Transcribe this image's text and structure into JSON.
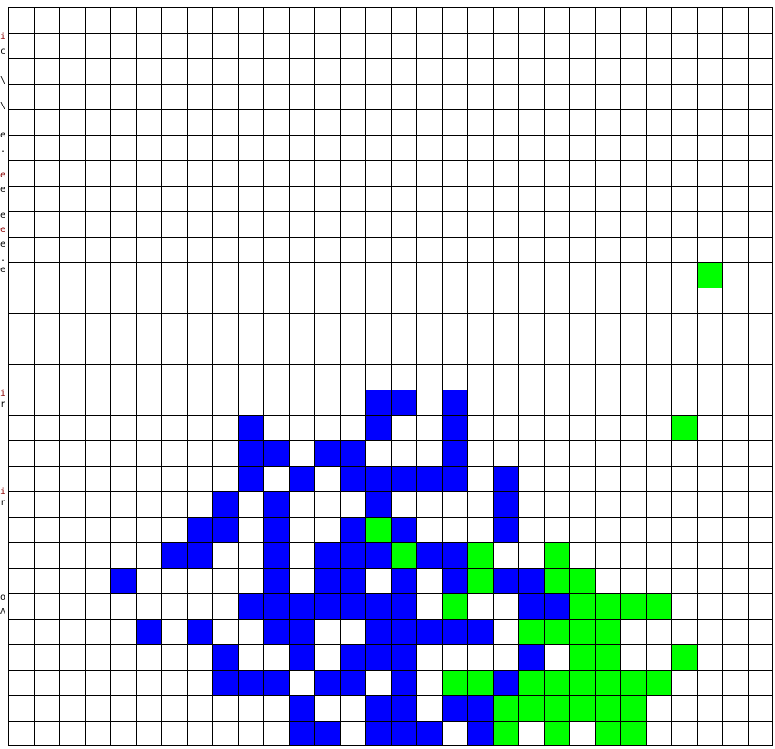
{
  "board": {
    "cols": 30,
    "rows": 29,
    "colors": {
      "empty": "#ffffff",
      "blue": "#0000ff",
      "green": "#00ff00",
      "grid_line": "#000000"
    },
    "blue_cells": [
      [
        16,
        14
      ],
      [
        16,
        15
      ],
      [
        16,
        17
      ],
      [
        17,
        9
      ],
      [
        17,
        14
      ],
      [
        17,
        17
      ],
      [
        18,
        9
      ],
      [
        18,
        10
      ],
      [
        18,
        12
      ],
      [
        18,
        13
      ],
      [
        18,
        17
      ],
      [
        19,
        9
      ],
      [
        19,
        11
      ],
      [
        19,
        13
      ],
      [
        19,
        14
      ],
      [
        19,
        15
      ],
      [
        19,
        16
      ],
      [
        19,
        17
      ],
      [
        19,
        19
      ],
      [
        20,
        8
      ],
      [
        20,
        10
      ],
      [
        20,
        14
      ],
      [
        20,
        19
      ],
      [
        21,
        7
      ],
      [
        21,
        8
      ],
      [
        21,
        10
      ],
      [
        21,
        13
      ],
      [
        21,
        15
      ],
      [
        21,
        19
      ],
      [
        22,
        6
      ],
      [
        22,
        7
      ],
      [
        22,
        10
      ],
      [
        22,
        12
      ],
      [
        22,
        13
      ],
      [
        22,
        14
      ],
      [
        22,
        16
      ],
      [
        22,
        17
      ],
      [
        23,
        4
      ],
      [
        23,
        10
      ],
      [
        23,
        12
      ],
      [
        23,
        13
      ],
      [
        23,
        15
      ],
      [
        23,
        17
      ],
      [
        23,
        19
      ],
      [
        23,
        20
      ],
      [
        24,
        9
      ],
      [
        24,
        10
      ],
      [
        24,
        11
      ],
      [
        24,
        12
      ],
      [
        24,
        13
      ],
      [
        24,
        14
      ],
      [
        24,
        15
      ],
      [
        24,
        20
      ],
      [
        24,
        21
      ],
      [
        25,
        5
      ],
      [
        25,
        7
      ],
      [
        25,
        10
      ],
      [
        25,
        11
      ],
      [
        25,
        14
      ],
      [
        25,
        15
      ],
      [
        25,
        16
      ],
      [
        25,
        17
      ],
      [
        25,
        18
      ],
      [
        26,
        8
      ],
      [
        26,
        11
      ],
      [
        26,
        13
      ],
      [
        26,
        14
      ],
      [
        26,
        15
      ],
      [
        26,
        20
      ],
      [
        27,
        8
      ],
      [
        27,
        9
      ],
      [
        27,
        10
      ],
      [
        27,
        12
      ],
      [
        27,
        13
      ],
      [
        27,
        15
      ],
      [
        27,
        19
      ],
      [
        28,
        11
      ],
      [
        28,
        14
      ],
      [
        28,
        15
      ],
      [
        28,
        17
      ],
      [
        28,
        18
      ],
      [
        29,
        11
      ],
      [
        29,
        12
      ],
      [
        29,
        14
      ],
      [
        29,
        15
      ],
      [
        29,
        16
      ],
      [
        29,
        18
      ]
    ],
    "green_cells": [
      [
        11,
        27
      ],
      [
        17,
        26
      ],
      [
        21,
        14
      ],
      [
        22,
        15
      ],
      [
        22,
        18
      ],
      [
        22,
        21
      ],
      [
        23,
        18
      ],
      [
        23,
        21
      ],
      [
        23,
        22
      ],
      [
        24,
        17
      ],
      [
        24,
        22
      ],
      [
        24,
        23
      ],
      [
        24,
        24
      ],
      [
        24,
        25
      ],
      [
        25,
        20
      ],
      [
        25,
        21
      ],
      [
        25,
        22
      ],
      [
        25,
        23
      ],
      [
        26,
        22
      ],
      [
        26,
        23
      ],
      [
        26,
        26
      ],
      [
        27,
        17
      ],
      [
        27,
        18
      ],
      [
        27,
        20
      ],
      [
        27,
        21
      ],
      [
        27,
        22
      ],
      [
        27,
        23
      ],
      [
        27,
        24
      ],
      [
        27,
        25
      ],
      [
        28,
        19
      ],
      [
        28,
        20
      ],
      [
        28,
        21
      ],
      [
        28,
        22
      ],
      [
        28,
        23
      ],
      [
        28,
        24
      ],
      [
        29,
        19
      ],
      [
        29,
        21
      ],
      [
        29,
        23
      ],
      [
        29,
        24
      ]
    ]
  },
  "left_panel": {
    "fragments": [
      {
        "text": "i",
        "tone": "red"
      },
      {
        "text": "c",
        "tone": "dark"
      },
      {
        "text": "\\",
        "tone": "dark"
      },
      {
        "text": "\\",
        "tone": "dark"
      },
      {
        "text": "e",
        "tone": "dark"
      },
      {
        "text": ".",
        "tone": "dark"
      },
      {
        "text": "e",
        "tone": "red"
      },
      {
        "text": "e",
        "tone": "dark"
      },
      {
        "text": "e",
        "tone": "dark"
      },
      {
        "text": ".",
        "tone": "dark"
      },
      {
        "text": "e",
        "tone": "red"
      },
      {
        "text": "e",
        "tone": "dark"
      },
      {
        "text": ".",
        "tone": "dark"
      },
      {
        "text": "e",
        "tone": "dark"
      },
      {
        "text": "i",
        "tone": "red"
      },
      {
        "text": "r",
        "tone": "dark"
      },
      {
        "text": "i",
        "tone": "red"
      },
      {
        "text": "r",
        "tone": "dark"
      },
      {
        "text": "o",
        "tone": "dark"
      },
      {
        "text": "A",
        "tone": "dark"
      }
    ]
  }
}
